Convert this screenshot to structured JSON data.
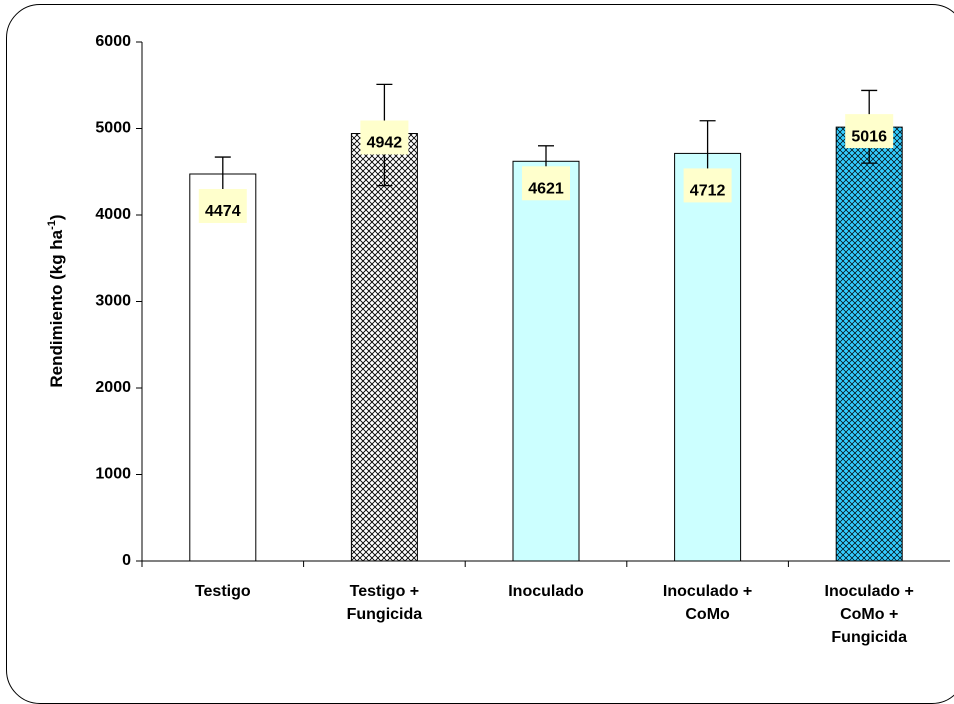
{
  "chart_data": {
    "type": "bar",
    "categories": [
      [
        "Testigo"
      ],
      [
        "Testigo +",
        "Fungicida"
      ],
      [
        "Inoculado"
      ],
      [
        "Inoculado +",
        "CoMo"
      ],
      [
        "Inoculado +",
        "CoMo +",
        "Fungicida"
      ]
    ],
    "values": [
      4474,
      4942,
      4621,
      4712,
      5016
    ],
    "error_low": [
      4280,
      4340,
      4440,
      4330,
      4600
    ],
    "error_high": [
      4670,
      5510,
      4800,
      5090,
      5440
    ],
    "data_labels": [
      "4474",
      "4942",
      "4621",
      "4712",
      "5016"
    ],
    "fills": [
      "none",
      "crosshatch-white",
      "solid-lightcyan",
      "solid-lightcyan",
      "crosshatch-cyan"
    ],
    "ylabel_main": "Rendimiento (kg ha",
    "ylabel_sup": "-1",
    "ylabel_end": ")",
    "ylim": [
      0,
      6000
    ],
    "yticks": [
      0,
      1000,
      2000,
      3000,
      4000,
      5000,
      6000
    ],
    "grid": false,
    "colors": {
      "light_cyan": "#ccffff",
      "cyan": "#33ccff",
      "label_box": "#ffffcc",
      "axis": "#000000"
    }
  }
}
